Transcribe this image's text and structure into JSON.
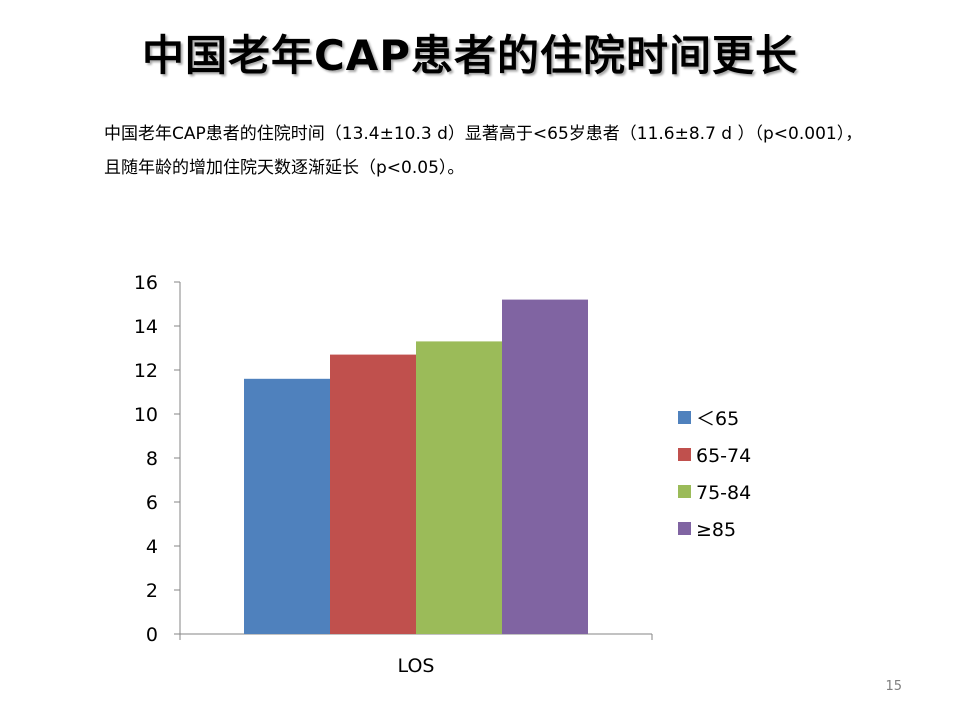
{
  "slide": {
    "title": "中国老年CAP患者的住院时间更长",
    "description_line1": "中国老年CAP患者的住院时间（13.4±10.3 d）显著高于<65岁患者（11.6±8.7 d ）（p<0.001），",
    "description_line2": "且随年龄的增加住院天数逐渐延长（p<0.05）。",
    "page_number": "15"
  },
  "chart_data": {
    "type": "bar",
    "categories": [
      "LOS"
    ],
    "series": [
      {
        "name": "＜65",
        "values": [
          11.6
        ],
        "color": "#4F81BD"
      },
      {
        "name": "65-74",
        "values": [
          12.7
        ],
        "color": "#C0504D"
      },
      {
        "name": "75-84",
        "values": [
          13.3
        ],
        "color": "#9BBB59"
      },
      {
        "name": "≥85",
        "values": [
          15.2
        ],
        "color": "#8064A2"
      }
    ],
    "title": "",
    "xlabel": "",
    "ylabel": "",
    "ylim": [
      0,
      16
    ],
    "yticks": [
      0,
      2,
      4,
      6,
      8,
      10,
      12,
      14,
      16
    ],
    "grid": false,
    "legend": "right"
  }
}
